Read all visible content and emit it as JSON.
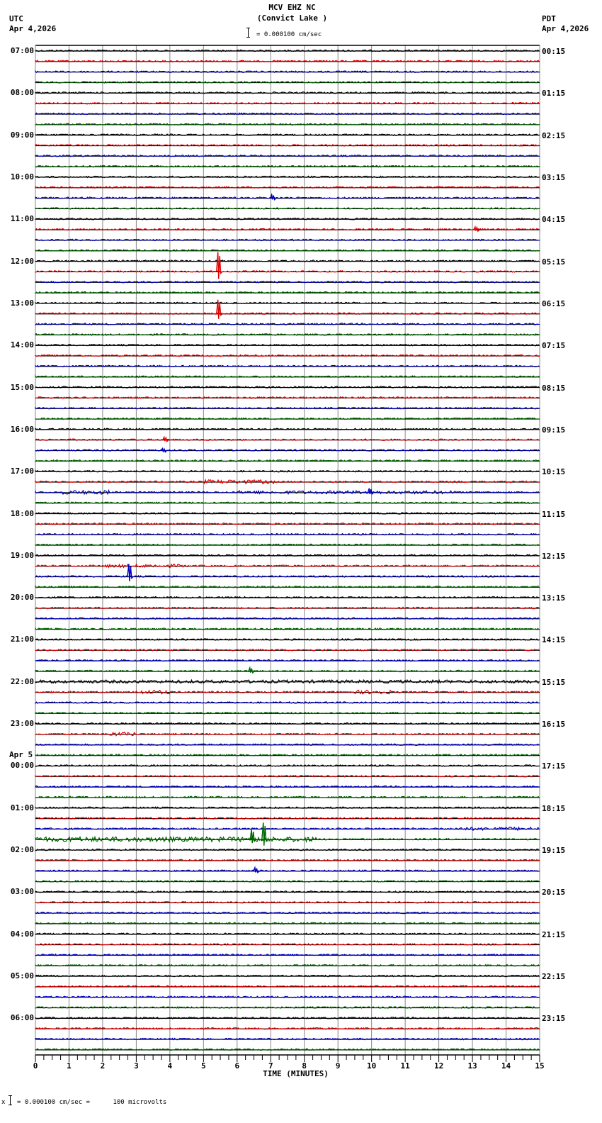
{
  "header": {
    "station": "MCV EHZ NC",
    "location": "(Convict Lake )",
    "left_tz": "UTC",
    "left_date": "Apr 4,2026",
    "right_tz": "PDT",
    "right_date": "Apr 4,2026",
    "scale_text": "= 0.000100 cm/sec"
  },
  "footer": {
    "scale_text": "= 0.000100 cm/sec =      100 microvolts",
    "prefix": "x"
  },
  "colors": {
    "trace_cycle": [
      "#000000",
      "#e00000",
      "#0000c0",
      "#006400"
    ],
    "grid": "#888888",
    "baseline": "#000000"
  },
  "chart_data": {
    "type": "line",
    "title": "MCV EHZ NC (Convict Lake ) helicorder",
    "xlabel": "TIME (MINUTES)",
    "ylabel": "",
    "x_ticks": [
      0,
      1,
      2,
      3,
      4,
      5,
      6,
      7,
      8,
      9,
      10,
      11,
      12,
      13,
      14,
      15
    ],
    "xlim": [
      0,
      15
    ],
    "traces_per_hour": 4,
    "trace_count": 96,
    "utc_labels": [
      "07:00",
      "08:00",
      "09:00",
      "10:00",
      "11:00",
      "12:00",
      "13:00",
      "14:00",
      "15:00",
      "16:00",
      "17:00",
      "18:00",
      "19:00",
      "20:00",
      "21:00",
      "22:00",
      "23:00",
      "00:00",
      "01:00",
      "02:00",
      "03:00",
      "04:00",
      "05:00",
      "06:00"
    ],
    "date_change_label": "Apr 5",
    "date_change_hour_index": 17,
    "pdt_labels": [
      "00:15",
      "01:15",
      "02:15",
      "03:15",
      "04:15",
      "05:15",
      "06:15",
      "07:15",
      "08:15",
      "09:15",
      "10:15",
      "11:15",
      "12:15",
      "13:15",
      "14:15",
      "15:15",
      "16:15",
      "17:15",
      "18:15",
      "19:15",
      "20:15",
      "21:15",
      "22:15",
      "23:15"
    ],
    "scale": "0.000100 cm/sec = 100 microvolts",
    "events": [
      {
        "trace": 14,
        "minute": 7.05,
        "amp": 5,
        "note": "small blue event ~10:30"
      },
      {
        "trace": 17,
        "minute": 13.1,
        "amp": 4,
        "note": "small red event ~11:15"
      },
      {
        "trace": 21,
        "minute": 5.45,
        "amp": 28,
        "note": "large red spike ~12:15-12:30"
      },
      {
        "trace": 25,
        "minute": 5.45,
        "amp": 20,
        "note": "red spike continuation ~13:15"
      },
      {
        "trace": 37,
        "minute": 3.85,
        "amp": 4,
        "note": "red event ~16:15"
      },
      {
        "trace": 38,
        "minute": 3.8,
        "amp": 3,
        "note": "blue event ~16:30"
      },
      {
        "trace": 42,
        "minute": 9.95,
        "amp": 6,
        "note": "blue event ~17:30"
      },
      {
        "trace": 50,
        "minute": 2.8,
        "amp": 18,
        "note": "blue spike ~19:30"
      },
      {
        "trace": 59,
        "minute": 6.4,
        "amp": 5,
        "note": "green event ~21:45"
      },
      {
        "trace": 75,
        "minute": 6.45,
        "amp": 14,
        "note": "black spike ~01:45"
      },
      {
        "trace": 75,
        "minute": 6.8,
        "amp": 24,
        "note": "black spike ~01:45"
      },
      {
        "trace": 78,
        "minute": 6.55,
        "amp": 5,
        "note": "blue event ~02:30"
      }
    ],
    "noisy_segments": [
      {
        "trace": 41,
        "from": 5.0,
        "to": 7.1,
        "level": 2.5
      },
      {
        "trace": 42,
        "from": 0.8,
        "to": 2.3,
        "level": 2.5
      },
      {
        "trace": 42,
        "from": 6.0,
        "to": 12.5,
        "level": 2
      },
      {
        "trace": 49,
        "from": 2.0,
        "to": 4.5,
        "level": 2
      },
      {
        "trace": 60,
        "from": 0,
        "to": 15,
        "level": 2
      },
      {
        "trace": 61,
        "from": 3.0,
        "to": 4.0,
        "level": 2.5
      },
      {
        "trace": 61,
        "from": 9.5,
        "to": 10.6,
        "level": 2.5
      },
      {
        "trace": 65,
        "from": 2.2,
        "to": 3.0,
        "level": 2.5
      },
      {
        "trace": 75,
        "from": 0,
        "to": 8.4,
        "level": 3
      },
      {
        "trace": 74,
        "from": 12.5,
        "to": 15,
        "level": 2
      }
    ]
  },
  "axis": {
    "xlabel": "TIME (MINUTES)",
    "ticks": [
      "0",
      "1",
      "2",
      "3",
      "4",
      "5",
      "6",
      "7",
      "8",
      "9",
      "10",
      "11",
      "12",
      "13",
      "14",
      "15"
    ]
  }
}
